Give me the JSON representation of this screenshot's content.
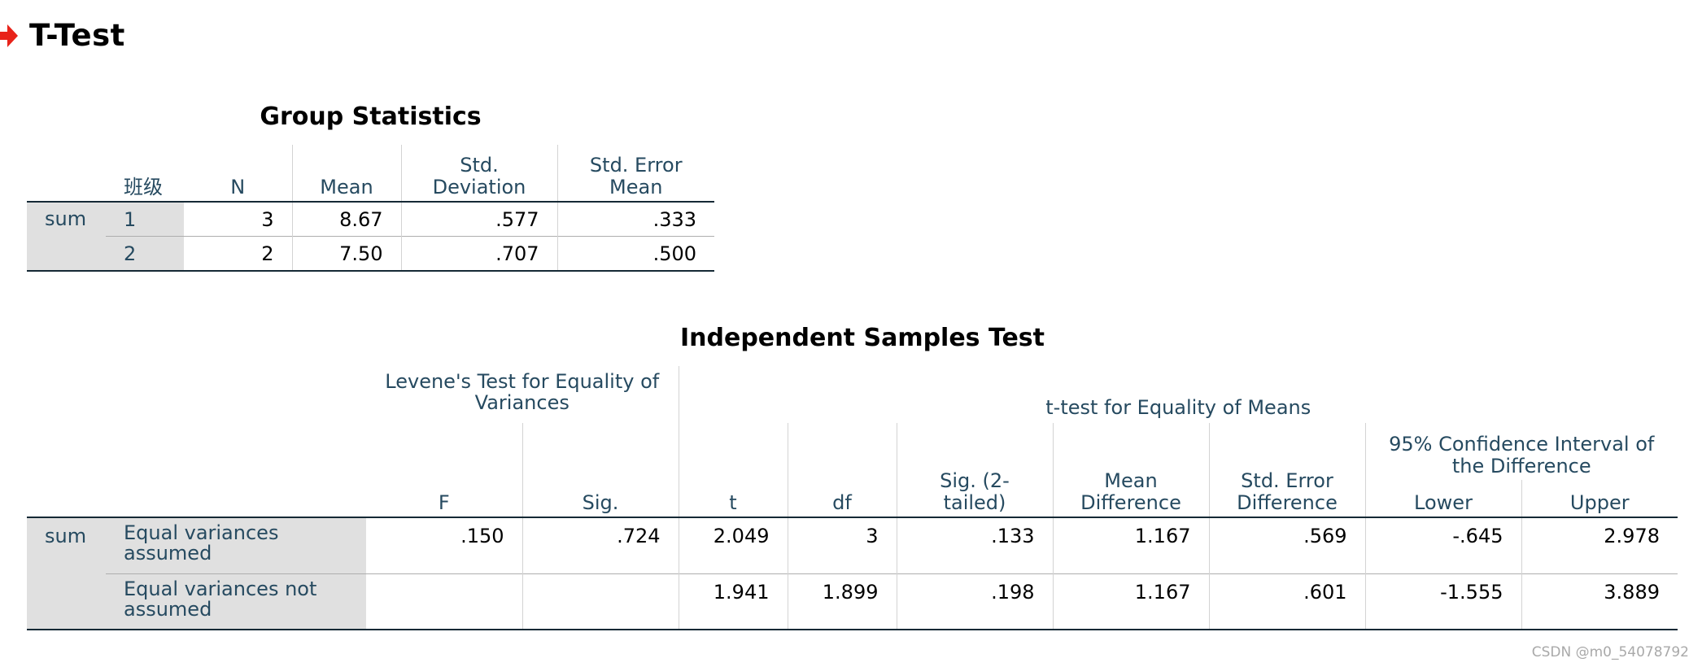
{
  "header": {
    "title": "T-Test"
  },
  "group_stats": {
    "title": "Group Statistics",
    "col_headers": [
      "班级",
      "N",
      "Mean",
      "Std. Deviation",
      "Std. Error Mean"
    ],
    "variable": "sum",
    "rows": [
      {
        "group": "1",
        "n": "3",
        "mean": "8.67",
        "sd": ".577",
        "se": ".333"
      },
      {
        "group": "2",
        "n": "2",
        "mean": "7.50",
        "sd": ".707",
        "se": ".500"
      }
    ]
  },
  "ind_test": {
    "title": "Independent Samples Test",
    "levene_header": "Levene's Test for Equality of Variances",
    "ttest_header": "t-test for Equality of Means",
    "ci_header": "95% Confidence Interval of the Difference",
    "col_headers": {
      "f": "F",
      "sig": "Sig.",
      "t": "t",
      "df": "df",
      "sig2": "Sig. (2-tailed)",
      "mean_diff": "Mean Difference",
      "se_diff": "Std. Error Difference",
      "lower": "Lower",
      "upper": "Upper"
    },
    "variable": "sum",
    "rows": [
      {
        "label": "Equal variances assumed",
        "f": ".150",
        "sig": ".724",
        "t": "2.049",
        "df": "3",
        "sig2": ".133",
        "mean_diff": "1.167",
        "se_diff": ".569",
        "lower": "-.645",
        "upper": "2.978"
      },
      {
        "label": "Equal variances not assumed",
        "f": "",
        "sig": "",
        "t": "1.941",
        "df": "1.899",
        "sig2": ".198",
        "mean_diff": "1.167",
        "se_diff": ".601",
        "lower": "-1.555",
        "upper": "3.889"
      }
    ]
  },
  "watermark": "CSDN @m0_54078792",
  "colors": {
    "arrow": "#e8231a",
    "header_text": "#264a60",
    "stub_bg": "#e0e0e0"
  }
}
